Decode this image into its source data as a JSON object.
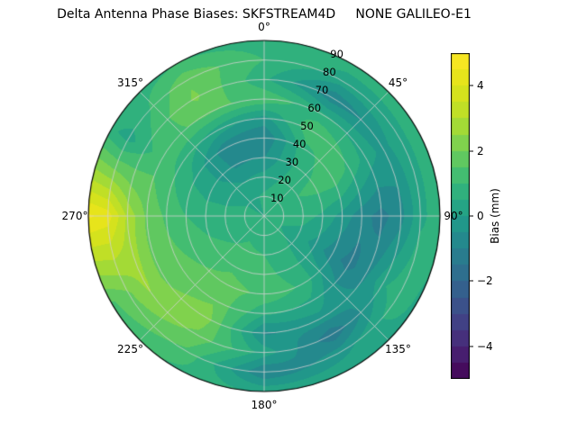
{
  "title": "Delta Antenna Phase Biases: SKFSTREAM4D     NONE GALILEO-E1",
  "chart_data": {
    "type": "heatmap",
    "projection": "polar",
    "title": "Delta Antenna Phase Biases: SKFSTREAM4D     NONE GALILEO-E1",
    "colorbar": {
      "label": "Bias (mm)",
      "ticks": [
        4,
        2,
        0,
        -2,
        -4
      ],
      "tick_labels": [
        "4",
        "2",
        "0",
        "−2",
        "−4"
      ],
      "vmin": -5,
      "vmax": 5,
      "colormap": "viridis",
      "level_step": 0.5
    },
    "azimuth_ticks_deg": [
      0,
      45,
      90,
      135,
      180,
      225,
      270,
      315
    ],
    "azimuth_tick_labels": [
      "0°",
      "45°",
      "90°",
      "135°",
      "180°",
      "225°",
      "270°",
      "315°"
    ],
    "radial_ticks": [
      10,
      20,
      30,
      40,
      50,
      60,
      70,
      80,
      90
    ],
    "radial_label_angle_deg": 22.5,
    "grid_azimuth_deg": [
      0,
      30,
      60,
      90,
      120,
      150,
      180,
      210,
      240,
      270,
      300,
      330
    ],
    "grid_zenith_deg": [
      0,
      10,
      20,
      30,
      40,
      50,
      60,
      70,
      80,
      90
    ],
    "bias_mm": [
      [
        0.5,
        0.5,
        0.5,
        0.5,
        0.5,
        0.5,
        0.5,
        0.5,
        0.5,
        0.5,
        0.5,
        0.5
      ],
      [
        0.6,
        0.7,
        0.8,
        0.7,
        0.5,
        0.6,
        0.8,
        0.9,
        0.8,
        0.7,
        0.5,
        0.4
      ],
      [
        0.2,
        0.6,
        1.0,
        0.7,
        0.3,
        0.6,
        1.0,
        1.1,
        0.9,
        0.7,
        0.3,
        0.0
      ],
      [
        -0.5,
        0.5,
        1.2,
        0.4,
        -0.2,
        0.7,
        1.2,
        1.4,
        1.1,
        0.8,
        0.2,
        -0.6
      ],
      [
        -1.0,
        0.8,
        1.4,
        -0.2,
        -0.8,
        0.9,
        1.4,
        1.7,
        1.4,
        1.0,
        0.4,
        -0.8
      ],
      [
        -0.2,
        1.5,
        0.9,
        -0.8,
        -1.2,
        0.4,
        0.6,
        1.9,
        1.7,
        1.4,
        0.9,
        0.3
      ],
      [
        1.4,
        0.6,
        0.3,
        -1.2,
        -0.6,
        -0.2,
        -0.6,
        2.3,
        1.9,
        1.9,
        1.3,
        1.6
      ],
      [
        0.6,
        -0.9,
        -0.2,
        -0.7,
        0.4,
        -1.4,
        0.3,
        1.9,
        2.6,
        2.9,
        0.8,
        2.1
      ],
      [
        1.0,
        0.3,
        0.4,
        0.4,
        0.9,
        -0.2,
        -1.0,
        1.4,
        1.9,
        4.3,
        0.3,
        1.9
      ],
      [
        0.7,
        0.7,
        0.7,
        0.7,
        0.4,
        0.4,
        0.4,
        0.9,
        1.4,
        4.6,
        0.6,
        1.0
      ]
    ]
  },
  "colors": {
    "background": "#ffffff",
    "grid_line": "#d2d2d2",
    "outline": "#000000",
    "colormap_stops": [
      "#440154",
      "#482878",
      "#3e4989",
      "#31688e",
      "#26828e",
      "#1f9e89",
      "#35b779",
      "#6ece58",
      "#b5de2b",
      "#dfe318",
      "#fde725"
    ]
  }
}
